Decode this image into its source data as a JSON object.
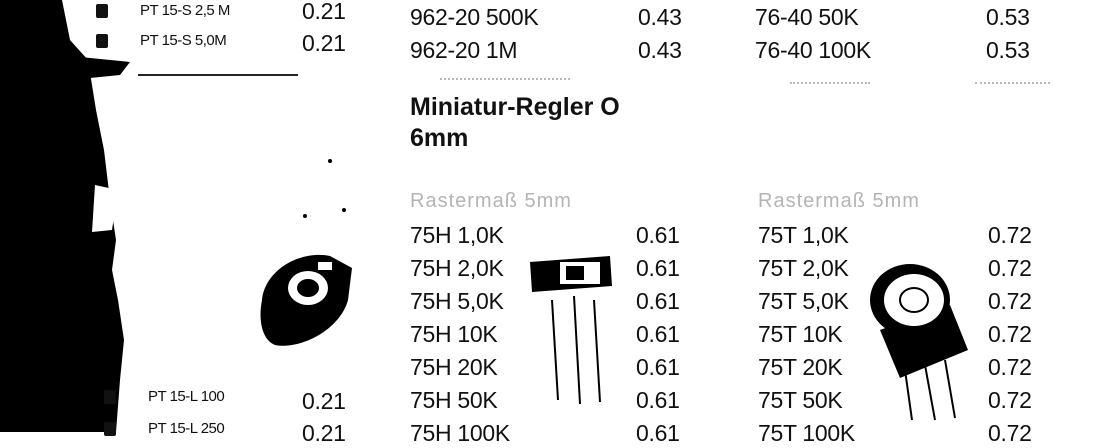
{
  "left_list": {
    "top_rows": [
      {
        "name": "PT 15-S 2,5 M",
        "price": "0.21"
      },
      {
        "name": "PT 15-S 5,0M",
        "price": "0.21"
      }
    ],
    "bottom_rows": [
      {
        "name": "PT 15-L 100",
        "price": "0.21"
      },
      {
        "name": "PT 15-L 250",
        "price": "0.21"
      }
    ]
  },
  "middle_top": [
    {
      "name": "962-20 500K",
      "price": "0.43"
    },
    {
      "name": "962-20 1M",
      "price": "0.43"
    }
  ],
  "right_top": [
    {
      "name": "76-40 50K",
      "price": "0.53"
    },
    {
      "name": "76-40 100K",
      "price": "0.53"
    }
  ],
  "section": {
    "title_line1": "Miniatur-Regler O",
    "title_line2": "6mm",
    "left_subheading": "Rastermaß 5mm",
    "right_subheading": "Rastermaß 5mm",
    "left_items": [
      {
        "name": "75H 1,0K",
        "price": "0.61"
      },
      {
        "name": "75H 2,0K",
        "price": "0.61"
      },
      {
        "name": "75H 5,0K",
        "price": "0.61"
      },
      {
        "name": "75H 10K",
        "price": "0.61"
      },
      {
        "name": "75H 20K",
        "price": "0.61"
      },
      {
        "name": "75H 50K",
        "price": "0.61"
      },
      {
        "name": "75H 100K",
        "price": "0.61"
      }
    ],
    "right_items": [
      {
        "name": "75T 1,0K",
        "price": "0.72"
      },
      {
        "name": "75T 2,0K",
        "price": "0.72"
      },
      {
        "name": "75T 5,0K",
        "price": "0.72"
      },
      {
        "name": "75T 10K",
        "price": "0.72"
      },
      {
        "name": "75T 20K",
        "price": "0.72"
      },
      {
        "name": "75T 50K",
        "price": "0.72"
      },
      {
        "name": "75T 100K",
        "price": "0.72"
      }
    ]
  },
  "colors": {
    "ink": "#111111",
    "paper": "#ffffff",
    "faint": "#b4b4b4"
  }
}
